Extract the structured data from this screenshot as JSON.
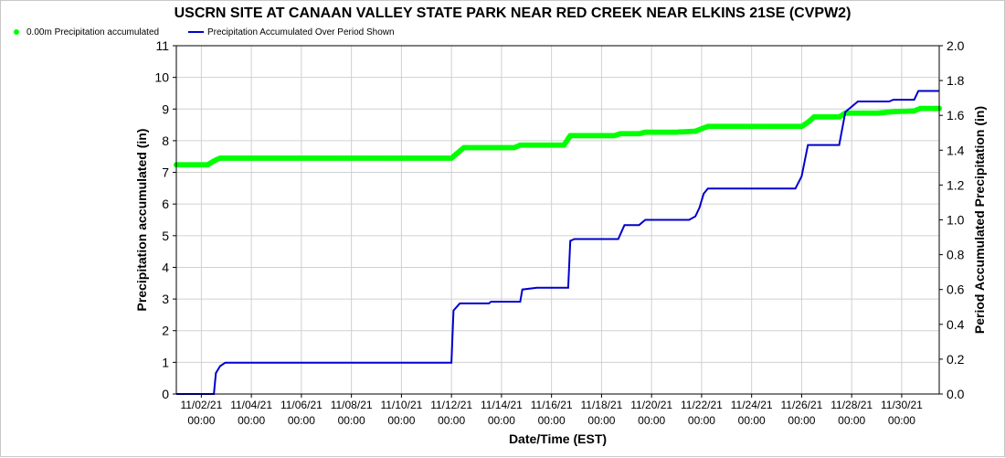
{
  "chart_data": {
    "type": "line",
    "title": "USCRN SITE AT CANAAN VALLEY STATE PARK NEAR RED CREEK NEAR ELKINS 21SE (CVPW2)",
    "xlabel": "Date/Time (EST)",
    "ylabel_left": "Precipitation accumulated (in)",
    "ylabel_right": "Period Accumulated Precipitation (in)",
    "ylim_left": [
      0,
      11
    ],
    "ylim_right": [
      0,
      2.0
    ],
    "yticks_left": [
      "0",
      "1",
      "2",
      "3",
      "4",
      "5",
      "6",
      "7",
      "8",
      "9",
      "10",
      "11"
    ],
    "yticks_right": [
      "0.0",
      "0.2",
      "0.4",
      "0.6",
      "0.8",
      "1.0",
      "1.2",
      "1.4",
      "1.6",
      "1.8",
      "2.0"
    ],
    "x_range": [
      "2021-11-01 00:00",
      "2021-12-01 12:00"
    ],
    "xticks": [
      {
        "x": "2021-11-02 00:00",
        "date": "11/02/21",
        "time": "00:00"
      },
      {
        "x": "2021-11-04 00:00",
        "date": "11/04/21",
        "time": "00:00"
      },
      {
        "x": "2021-11-06 00:00",
        "date": "11/06/21",
        "time": "00:00"
      },
      {
        "x": "2021-11-08 00:00",
        "date": "11/08/21",
        "time": "00:00"
      },
      {
        "x": "2021-11-10 00:00",
        "date": "11/10/21",
        "time": "00:00"
      },
      {
        "x": "2021-11-12 00:00",
        "date": "11/12/21",
        "time": "00:00"
      },
      {
        "x": "2021-11-14 00:00",
        "date": "11/14/21",
        "time": "00:00"
      },
      {
        "x": "2021-11-16 00:00",
        "date": "11/16/21",
        "time": "00:00"
      },
      {
        "x": "2021-11-18 00:00",
        "date": "11/18/21",
        "time": "00:00"
      },
      {
        "x": "2021-11-20 00:00",
        "date": "11/20/21",
        "time": "00:00"
      },
      {
        "x": "2021-11-22 00:00",
        "date": "11/22/21",
        "time": "00:00"
      },
      {
        "x": "2021-11-24 00:00",
        "date": "11/24/21",
        "time": "00:00"
      },
      {
        "x": "2021-11-26 00:00",
        "date": "11/26/21",
        "time": "00:00"
      },
      {
        "x": "2021-11-28 00:00",
        "date": "11/28/21",
        "time": "00:00"
      },
      {
        "x": "2021-11-30 00:00",
        "date": "11/30/21",
        "time": "00:00"
      }
    ],
    "grid": true,
    "legend_position": "top-left",
    "series": [
      {
        "name": "0.00m Precipitation accumulated",
        "axis": "left",
        "color": "#00ff00",
        "style": "dots",
        "points": [
          [
            "2021-11-01 00:00",
            7.24
          ],
          [
            "2021-11-02 06:00",
            7.24
          ],
          [
            "2021-11-02 12:00",
            7.36
          ],
          [
            "2021-11-02 18:00",
            7.45
          ],
          [
            "2021-11-05 00:00",
            7.45
          ],
          [
            "2021-11-08 00:00",
            7.45
          ],
          [
            "2021-11-11 00:00",
            7.45
          ],
          [
            "2021-11-12 00:00",
            7.45
          ],
          [
            "2021-11-12 06:00",
            7.62
          ],
          [
            "2021-11-12 12:00",
            7.78
          ],
          [
            "2021-11-13 00:00",
            7.78
          ],
          [
            "2021-11-14 12:00",
            7.78
          ],
          [
            "2021-11-14 18:00",
            7.86
          ],
          [
            "2021-11-16 12:00",
            7.86
          ],
          [
            "2021-11-16 18:00",
            8.16
          ],
          [
            "2021-11-18 12:00",
            8.16
          ],
          [
            "2021-11-18 18:00",
            8.22
          ],
          [
            "2021-11-19 12:00",
            8.22
          ],
          [
            "2021-11-19 18:00",
            8.27
          ],
          [
            "2021-11-21 00:00",
            8.27
          ],
          [
            "2021-11-21 18:00",
            8.3
          ],
          [
            "2021-11-22 06:00",
            8.45
          ],
          [
            "2021-11-24 00:00",
            8.45
          ],
          [
            "2021-11-26 00:00",
            8.45
          ],
          [
            "2021-11-26 06:00",
            8.58
          ],
          [
            "2021-11-26 12:00",
            8.75
          ],
          [
            "2021-11-27 12:00",
            8.75
          ],
          [
            "2021-11-27 18:00",
            8.87
          ],
          [
            "2021-11-29 00:00",
            8.87
          ],
          [
            "2021-11-29 18:00",
            8.92
          ],
          [
            "2021-11-30 12:00",
            8.94
          ],
          [
            "2021-11-30 18:00",
            9.02
          ],
          [
            "2021-12-01 12:00",
            9.02
          ]
        ]
      },
      {
        "name": "Precipitation Accumulated Over Period Shown",
        "axis": "right",
        "color": "#0000cc",
        "style": "line",
        "points": [
          [
            "2021-11-01 00:00",
            0.0
          ],
          [
            "2021-11-02 12:00",
            0.0
          ],
          [
            "2021-11-02 14:00",
            0.12
          ],
          [
            "2021-11-02 18:00",
            0.16
          ],
          [
            "2021-11-02 23:00",
            0.18
          ],
          [
            "2021-11-12 00:00",
            0.18
          ],
          [
            "2021-11-12 02:00",
            0.48
          ],
          [
            "2021-11-12 08:00",
            0.52
          ],
          [
            "2021-11-13 12:00",
            0.52
          ],
          [
            "2021-11-13 14:00",
            0.53
          ],
          [
            "2021-11-14 18:00",
            0.53
          ],
          [
            "2021-11-14 20:00",
            0.6
          ],
          [
            "2021-11-15 10:00",
            0.61
          ],
          [
            "2021-11-16 16:00",
            0.61
          ],
          [
            "2021-11-16 18:00",
            0.88
          ],
          [
            "2021-11-16 22:00",
            0.89
          ],
          [
            "2021-11-18 16:00",
            0.89
          ],
          [
            "2021-11-18 22:00",
            0.97
          ],
          [
            "2021-11-19 12:00",
            0.97
          ],
          [
            "2021-11-19 18:00",
            1.0
          ],
          [
            "2021-11-21 12:00",
            1.0
          ],
          [
            "2021-11-21 18:00",
            1.02
          ],
          [
            "2021-11-21 22:00",
            1.07
          ],
          [
            "2021-11-22 02:00",
            1.15
          ],
          [
            "2021-11-22 06:00",
            1.18
          ],
          [
            "2021-11-25 18:00",
            1.18
          ],
          [
            "2021-11-26 00:00",
            1.25
          ],
          [
            "2021-11-26 06:00",
            1.43
          ],
          [
            "2021-11-27 12:00",
            1.43
          ],
          [
            "2021-11-27 18:00",
            1.62
          ],
          [
            "2021-11-28 06:00",
            1.68
          ],
          [
            "2021-11-29 12:00",
            1.68
          ],
          [
            "2021-11-29 16:00",
            1.69
          ],
          [
            "2021-11-30 12:00",
            1.69
          ],
          [
            "2021-11-30 16:00",
            1.74
          ],
          [
            "2021-12-01 12:00",
            1.74
          ]
        ]
      }
    ]
  }
}
